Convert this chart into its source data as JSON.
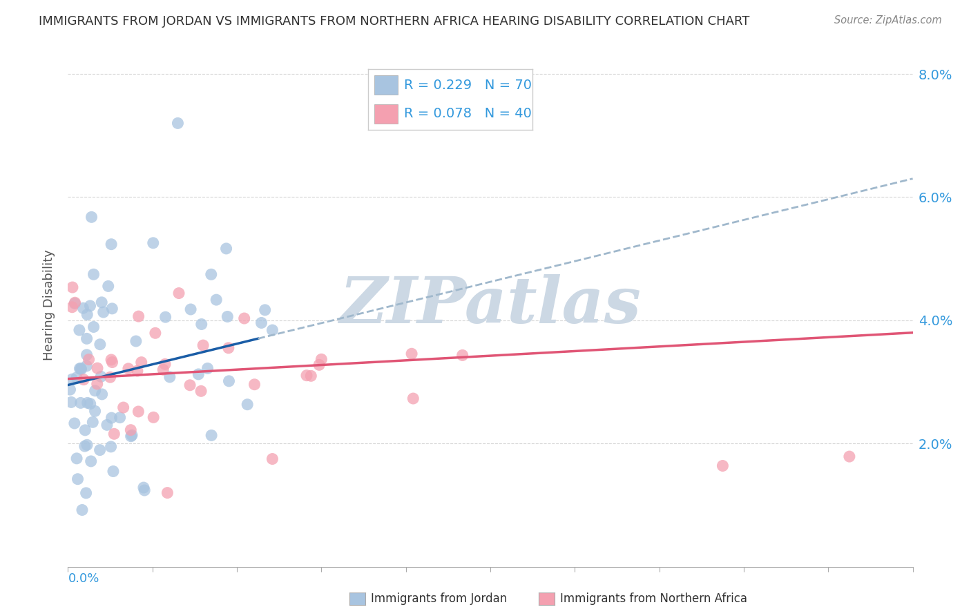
{
  "title": "IMMIGRANTS FROM JORDAN VS IMMIGRANTS FROM NORTHERN AFRICA HEARING DISABILITY CORRELATION CHART",
  "source": "Source: ZipAtlas.com",
  "ylabel": "Hearing Disability",
  "xlim": [
    0.0,
    0.2
  ],
  "ylim": [
    0.0,
    0.085
  ],
  "yticks": [
    0.02,
    0.04,
    0.06,
    0.08
  ],
  "ytick_labels": [
    "2.0%",
    "4.0%",
    "6.0%",
    "8.0%"
  ],
  "legend_jordan_R": "0.229",
  "legend_jordan_N": "70",
  "legend_africa_R": "0.078",
  "legend_africa_N": "40",
  "color_jordan": "#a8c4e0",
  "color_africa": "#f4a0b0",
  "color_jordan_line": "#1a5da6",
  "color_africa_line": "#e05575",
  "color_dashed": "#a0b8cc",
  "watermark_text": "ZIPatlas",
  "watermark_color": "#ccd8e4",
  "background_color": "#ffffff",
  "grid_color": "#cccccc",
  "tick_label_color": "#3399dd",
  "title_color": "#333333",
  "source_color": "#888888"
}
